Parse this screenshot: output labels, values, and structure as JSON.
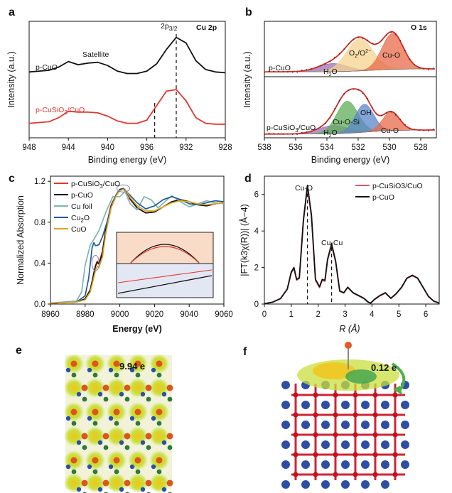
{
  "panels": {
    "a": {
      "letter": "a",
      "element_label": "Cu 2p",
      "peak_label_main": "2p",
      "peak_label_sub": "3/2",
      "satellite_label": "Satellite",
      "ylabel": "Intensity (a.u.)",
      "xlabel": "Binding energy (eV)",
      "series_labels": [
        "p-CuO",
        "p-CuSiO",
        "3",
        "/CuO"
      ]
    },
    "b": {
      "letter": "b",
      "element_label": "O 1s",
      "ylabel": "Intensity (a.u.)",
      "xlabel": "Binding energy (eV)",
      "sample_labels": [
        "p-CuO",
        "p-CuSiO",
        "3",
        "/CuO"
      ],
      "component_labels": {
        "h2o": "H",
        "h2o_sub": "2",
        "h2o_end": "O",
        "o2": "O",
        "o2_sub": "2",
        "o2_mid": "/O",
        "o2_sup": "2−",
        "o2_sub2": "2",
        "cuo": "Cu-O",
        "cuosi": "Cu-O-Si",
        "oh": "OH"
      }
    },
    "c": {
      "letter": "c",
      "ylabel": "Normalized Absorption",
      "xlabel": "Energy (eV)",
      "legend": [
        "p-CuSiO3/CuO",
        "p-CuO",
        "Cu foil",
        "Cu2O",
        "CuO"
      ]
    },
    "d": {
      "letter": "d",
      "xlabel": "R (Å)",
      "ylabel": "|FT(k3χ(R))| (Å−4)",
      "peak_labels": [
        "Cu-O",
        "Cu-Cu"
      ],
      "legend": [
        "p-CuSiO3/CuO",
        "p-CuO"
      ]
    },
    "e": {
      "letter": "e",
      "charge_label": "9.94 e"
    },
    "f": {
      "letter": "f",
      "charge_label": "0.12 e"
    }
  },
  "colors": {
    "p_cuo": "#111111",
    "p_cusio3": "#e0372f",
    "cu_foil": "#7fb3b0",
    "cu2o": "#1f5c99",
    "cuo_ref": "#d9a520",
    "fit_envelope": "#d62b22",
    "comp_h2o": "#9b6fb5",
    "comp_o2": "#f4d38f",
    "comp_cuo": "#e8694a",
    "comp_cuosi": "#5fae5a",
    "comp_oh": "#5a86c9",
    "inset_top_bg": "#f9dcc8",
    "inset_bottom_bg": "#e3e7f3",
    "ldr_red": "#cf2436",
    "lab_line_d": "#d65a6e"
  },
  "chart_data": [
    {
      "id": "a",
      "type": "line",
      "title": "",
      "xlabel": "Binding energy (eV)",
      "ylabel": "Intensity (a.u.)",
      "xlim": [
        948,
        928
      ],
      "xticks": [
        948,
        944,
        940,
        936,
        932,
        928
      ],
      "y_axis_ticks": false,
      "dashed_lines": [
        933.0,
        935.2
      ],
      "series": [
        {
          "name": "p-CuO",
          "color": "#111111",
          "x": [
            948,
            946,
            945,
            944,
            943,
            942,
            941,
            940,
            939,
            938,
            937,
            936,
            935,
            934,
            933,
            932,
            931,
            930,
            929,
            928
          ],
          "y": [
            0.82,
            0.84,
            0.88,
            0.95,
            0.91,
            0.93,
            0.94,
            0.9,
            0.83,
            0.8,
            0.8,
            0.83,
            0.92,
            1.1,
            1.25,
            1.18,
            0.96,
            0.85,
            0.82,
            0.81
          ]
        },
        {
          "name": "p-CuSiO3/CuO",
          "color": "#e0372f",
          "x": [
            948,
            946,
            945,
            944,
            943,
            942,
            941,
            940,
            939,
            938,
            937,
            936,
            935,
            934,
            933,
            932,
            931,
            930,
            929,
            928
          ],
          "y": [
            0.18,
            0.2,
            0.25,
            0.33,
            0.32,
            0.32,
            0.31,
            0.27,
            0.21,
            0.18,
            0.18,
            0.22,
            0.4,
            0.58,
            0.6,
            0.46,
            0.25,
            0.18,
            0.17,
            0.17
          ]
        }
      ]
    },
    {
      "id": "b",
      "type": "area",
      "title": "",
      "xlabel": "Binding energy (eV)",
      "ylabel": "Intensity (a.u.)",
      "xlim": [
        538,
        527
      ],
      "xticks": [
        538,
        536,
        534,
        532,
        530,
        528
      ],
      "y_axis_ticks": false,
      "series": [
        {
          "name": "p-CuO",
          "components": [
            {
              "name": "H2O",
              "center": 533.6,
              "fwhm": 2.2,
              "height": 0.14
            },
            {
              "name": "O2/O2 2-",
              "center": 531.9,
              "fwhm": 2.0,
              "height": 0.55
            },
            {
              "name": "Cu-O",
              "center": 529.8,
              "fwhm": 1.6,
              "height": 0.62
            }
          ]
        },
        {
          "name": "p-CuSiO3/CuO",
          "components": [
            {
              "name": "H2O",
              "center": 533.6,
              "fwhm": 2.2,
              "height": 0.14
            },
            {
              "name": "Cu-O-Si",
              "center": 532.7,
              "fwhm": 1.6,
              "height": 0.55
            },
            {
              "name": "OH",
              "center": 531.6,
              "fwhm": 1.4,
              "height": 0.48
            },
            {
              "name": "Cu-O",
              "center": 529.9,
              "fwhm": 1.3,
              "height": 0.32
            }
          ]
        }
      ]
    },
    {
      "id": "c",
      "type": "line",
      "title": "",
      "xlabel": "Energy (eV)",
      "ylabel": "Normalized Absorption",
      "xlim": [
        8960,
        9060
      ],
      "ylim": [
        0,
        1.25
      ],
      "xticks": [
        8960,
        8980,
        9000,
        9020,
        9040,
        9060
      ],
      "yticks": [
        0.0,
        0.4,
        0.8,
        1.2
      ],
      "series": [
        {
          "name": "p-CuSiO3/CuO",
          "color": "#e0372f",
          "x": [
            8960,
            8975,
            8980,
            8983,
            8985,
            8986,
            8987,
            8988,
            8990,
            8992,
            8995,
            8998,
            9000,
            9002,
            9004,
            9006,
            9010,
            9015,
            9020,
            9025,
            9030,
            9035,
            9040,
            9045,
            9050,
            9055,
            9060
          ],
          "y": [
            0.01,
            0.02,
            0.05,
            0.14,
            0.3,
            0.38,
            0.42,
            0.4,
            0.52,
            0.75,
            0.97,
            1.07,
            1.11,
            1.12,
            1.09,
            1.02,
            0.94,
            0.89,
            0.9,
            0.95,
            1.0,
            1.02,
            1.0,
            0.97,
            0.96,
            0.98,
            0.99
          ]
        },
        {
          "name": "p-CuO",
          "color": "#111111",
          "x": [
            8960,
            8975,
            8980,
            8983,
            8985,
            8986,
            8987,
            8988,
            8990,
            8992,
            8995,
            8998,
            9000,
            9002,
            9004,
            9006,
            9010,
            9015,
            9020,
            9025,
            9030,
            9035,
            9040,
            9045,
            9050,
            9055,
            9060
          ],
          "y": [
            0.01,
            0.02,
            0.05,
            0.14,
            0.3,
            0.37,
            0.41,
            0.39,
            0.5,
            0.74,
            0.96,
            1.07,
            1.12,
            1.13,
            1.1,
            1.03,
            0.94,
            0.89,
            0.9,
            0.95,
            1.0,
            1.02,
            1.0,
            0.97,
            0.96,
            0.98,
            0.99
          ]
        },
        {
          "name": "Cu foil",
          "color": "#7fb3b0",
          "x": [
            8960,
            8975,
            8978,
            8980,
            8983,
            8985,
            8988,
            8992,
            8996,
            9000,
            9003,
            9006,
            9010,
            9014,
            9018,
            9022,
            9026,
            9030,
            9035,
            9040,
            9045,
            9050,
            9055,
            9060
          ],
          "y": [
            0.01,
            0.03,
            0.12,
            0.38,
            0.58,
            0.63,
            0.72,
            0.9,
            1.05,
            1.05,
            1.1,
            0.98,
            0.92,
            1.05,
            1.02,
            0.94,
            1.0,
            1.06,
            1.0,
            0.95,
            0.98,
            1.01,
            0.99,
            0.98
          ]
        },
        {
          "name": "Cu2O",
          "color": "#1f5c99",
          "x": [
            8960,
            8975,
            8980,
            8982,
            8984,
            8985,
            8986,
            8988,
            8990,
            8993,
            8996,
            8999,
            9002,
            9005,
            9010,
            9015,
            9020,
            9025,
            9030,
            9035,
            9040,
            9045,
            9050,
            9055,
            9060
          ],
          "y": [
            0.01,
            0.02,
            0.08,
            0.25,
            0.55,
            0.6,
            0.57,
            0.58,
            0.66,
            0.82,
            1.0,
            1.1,
            1.13,
            1.08,
            0.99,
            0.93,
            0.96,
            1.02,
            1.05,
            1.02,
            0.98,
            0.97,
            0.99,
            1.01,
            1.0
          ]
        },
        {
          "name": "CuO",
          "color": "#d9a520",
          "x": [
            8960,
            8975,
            8980,
            8983,
            8985,
            8986,
            8987,
            8988,
            8990,
            8992,
            8995,
            8998,
            9000,
            9002,
            9004,
            9006,
            9010,
            9015,
            9020,
            9025,
            9030,
            9035,
            9040,
            9045,
            9050,
            9055,
            9060
          ],
          "y": [
            0.01,
            0.02,
            0.04,
            0.12,
            0.26,
            0.33,
            0.37,
            0.36,
            0.46,
            0.7,
            0.94,
            1.06,
            1.11,
            1.12,
            1.1,
            1.04,
            0.96,
            0.91,
            0.91,
            0.95,
            0.99,
            1.01,
            1.0,
            0.98,
            0.97,
            0.98,
            0.99
          ]
        }
      ]
    },
    {
      "id": "d",
      "type": "line",
      "title": "",
      "xlabel": "R (Å)",
      "ylabel": "|FT(k3χ(R))| (Å−4)",
      "xlim": [
        0,
        6.5
      ],
      "ylim": [
        0,
        7
      ],
      "xticks": [
        0,
        1,
        2,
        3,
        4,
        5,
        6
      ],
      "yticks": [
        0,
        2,
        4,
        6
      ],
      "dashed_lines": [
        1.6,
        2.5
      ],
      "series": [
        {
          "name": "p-CuSiO3/CuO",
          "color": "#d65a6e",
          "x": [
            0.0,
            0.3,
            0.6,
            0.85,
            1.0,
            1.1,
            1.2,
            1.3,
            1.45,
            1.6,
            1.75,
            1.9,
            2.05,
            2.15,
            2.25,
            2.35,
            2.5,
            2.65,
            2.8,
            2.95,
            3.1,
            3.3,
            3.5,
            3.7,
            3.85,
            3.95,
            4.1,
            4.3,
            4.5,
            4.7,
            4.9,
            5.1,
            5.3,
            5.5,
            5.7,
            5.9,
            6.1,
            6.3,
            6.5
          ],
          "y": [
            0.02,
            0.1,
            0.3,
            0.8,
            1.7,
            1.95,
            1.3,
            1.4,
            4.5,
            6.4,
            4.8,
            1.3,
            0.9,
            1.3,
            1.25,
            2.4,
            3.2,
            2.3,
            0.7,
            0.6,
            0.9,
            0.6,
            0.45,
            0.3,
            0.1,
            0.05,
            0.25,
            0.45,
            0.6,
            0.3,
            0.55,
            0.9,
            1.4,
            1.55,
            1.4,
            0.9,
            0.4,
            0.15,
            0.05
          ]
        },
        {
          "name": "p-CuO",
          "color": "#111111",
          "x": [
            0.0,
            0.3,
            0.6,
            0.85,
            1.0,
            1.1,
            1.2,
            1.3,
            1.45,
            1.6,
            1.75,
            1.9,
            2.05,
            2.15,
            2.25,
            2.35,
            2.5,
            2.65,
            2.8,
            2.95,
            3.1,
            3.3,
            3.5,
            3.7,
            3.85,
            3.95,
            4.1,
            4.3,
            4.5,
            4.7,
            4.9,
            5.1,
            5.3,
            5.5,
            5.7,
            5.9,
            6.1,
            6.3,
            6.5
          ],
          "y": [
            0.02,
            0.1,
            0.3,
            0.82,
            1.75,
            2.0,
            1.35,
            1.45,
            4.6,
            6.5,
            4.9,
            1.35,
            0.95,
            1.35,
            1.3,
            2.45,
            3.3,
            2.35,
            0.72,
            0.62,
            0.92,
            0.62,
            0.47,
            0.32,
            0.12,
            0.05,
            0.27,
            0.47,
            0.62,
            0.32,
            0.57,
            0.92,
            1.42,
            1.58,
            1.42,
            0.92,
            0.42,
            0.16,
            0.05
          ]
        }
      ]
    }
  ]
}
